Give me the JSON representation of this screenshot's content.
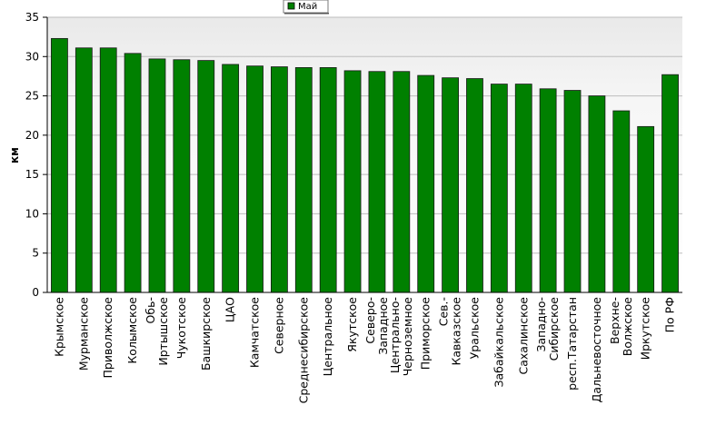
{
  "chart_data": {
    "type": "bar",
    "ylabel": "км",
    "ylim": [
      0,
      35
    ],
    "yticks": [
      0,
      5,
      10,
      15,
      20,
      25,
      30,
      35
    ],
    "grid": true,
    "legend_position": "top-center",
    "series": [
      {
        "name": "Май",
        "color": "#008000",
        "values": [
          32.3,
          31.1,
          31.1,
          30.4,
          29.7,
          29.6,
          29.5,
          29.0,
          28.8,
          28.7,
          28.6,
          28.6,
          28.2,
          28.1,
          28.1,
          27.6,
          27.3,
          27.2,
          26.5,
          26.5,
          25.9,
          25.7,
          25.0,
          23.1,
          21.1,
          27.7
        ]
      }
    ],
    "categories": [
      [
        "Крымское"
      ],
      [
        "Мурманское"
      ],
      [
        "Приволжское"
      ],
      [
        "Колымское"
      ],
      [
        "Обь-",
        "Иртышское"
      ],
      [
        "Чукотское"
      ],
      [
        "Башкирское"
      ],
      [
        "ЦАО"
      ],
      [
        "Камчатское"
      ],
      [
        "Северное"
      ],
      [
        "Среднесибирское"
      ],
      [
        "Центральное"
      ],
      [
        "Якутское"
      ],
      [
        "Северо-",
        "Западное"
      ],
      [
        "Центрально-",
        "Черноземное"
      ],
      [
        "Приморское"
      ],
      [
        "Сев.-",
        "Кавказское"
      ],
      [
        "Уральское"
      ],
      [
        "Забайкальское"
      ],
      [
        "Сахалинское"
      ],
      [
        "Западно-",
        "Сибирское"
      ],
      [
        "респ.Татарстан"
      ],
      [
        "Дальневосточное"
      ],
      [
        "Верхне-",
        "Волжское"
      ],
      [
        "Иркутское"
      ],
      [
        "По РФ"
      ]
    ]
  }
}
